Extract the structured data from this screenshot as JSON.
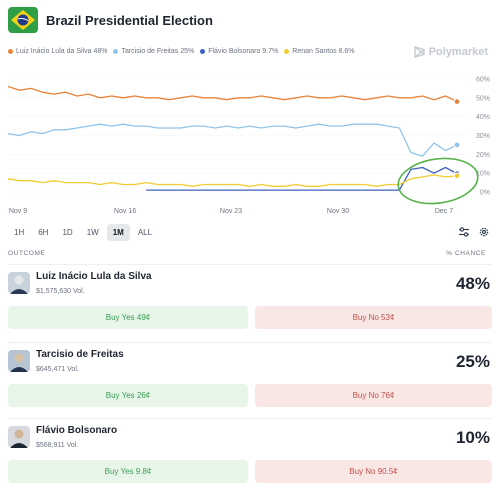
{
  "header": {
    "title": "Brazil Presidential Election"
  },
  "legend": [
    {
      "label": "Luiz Inácio Lula da Silva 48%",
      "color": "#e8843a"
    },
    {
      "label": "Tarcisio de Freitas 25%",
      "color": "#8fc4ea"
    },
    {
      "label": "Flávio Bolsonaro 9.7%",
      "color": "#3d5fc0"
    },
    {
      "label": "Renan Santos 8.6%",
      "color": "#f0cc33"
    }
  ],
  "brand": {
    "name": "Polymarket"
  },
  "chart_data": {
    "type": "line",
    "x_ticks": [
      "Nov 9",
      "Nov 16",
      "Nov 23",
      "Nov 30",
      "Dec 7"
    ],
    "y_ticks": [
      "60%",
      "50%",
      "40%",
      "30%",
      "20%",
      "10%",
      "0%"
    ],
    "ylim": [
      0,
      60
    ],
    "series": [
      {
        "name": "Luiz Inácio Lula da Silva",
        "color": "#e8843a",
        "values": [
          56,
          54,
          55,
          53,
          52,
          53,
          51,
          52,
          50,
          51,
          50,
          51,
          50,
          50,
          49,
          50,
          51,
          50,
          50,
          49,
          50,
          50,
          51,
          50,
          49,
          50,
          51,
          50,
          50,
          51,
          50,
          49,
          50,
          51,
          50,
          50,
          51,
          49,
          51,
          48
        ]
      },
      {
        "name": "Tarcisio de Freitas",
        "color": "#8fc4ea",
        "values": [
          31,
          30,
          32,
          31,
          33,
          33,
          34,
          35,
          36,
          35,
          36,
          35,
          35,
          34,
          34,
          34,
          35,
          35,
          34,
          35,
          34,
          35,
          34,
          35,
          35,
          34,
          35,
          36,
          35,
          35,
          36,
          36,
          36,
          35,
          34,
          21,
          19,
          26,
          22,
          25
        ]
      },
      {
        "name": "Flávio Bolsonaro",
        "color": "#3d5fc0",
        "values": [
          null,
          null,
          null,
          null,
          null,
          null,
          null,
          null,
          null,
          null,
          null,
          null,
          1,
          1,
          1,
          1,
          1,
          1,
          1,
          1,
          1,
          1,
          1,
          1,
          1,
          1,
          1,
          1,
          1,
          1,
          1,
          1,
          1,
          1,
          1,
          12,
          13,
          10,
          13,
          9.7
        ]
      },
      {
        "name": "Renan Santos",
        "color": "#f0cc33",
        "values": [
          7,
          6,
          6,
          5,
          6,
          5,
          5,
          5,
          4,
          5,
          4,
          4,
          5,
          4,
          4,
          4,
          3,
          4,
          4,
          4,
          4,
          3,
          4,
          3,
          3,
          4,
          3,
          3,
          4,
          4,
          4,
          4,
          3,
          4,
          4,
          7,
          8,
          9,
          8,
          8.6
        ]
      }
    ]
  },
  "timeframes": [
    {
      "label": "1H",
      "active": false
    },
    {
      "label": "6H",
      "active": false
    },
    {
      "label": "1D",
      "active": false
    },
    {
      "label": "1W",
      "active": false
    },
    {
      "label": "1M",
      "active": true
    },
    {
      "label": "ALL",
      "active": false
    }
  ],
  "table": {
    "outcome_label": "OUTCOME",
    "chance_label": "% CHANCE"
  },
  "candidates": [
    {
      "name": "Luiz Inácio Lula da Silva",
      "volume": "$1,575,630 Vol.",
      "chance": "48%",
      "yes_label": "Buy Yes 49¢",
      "no_label": "Buy No 53¢"
    },
    {
      "name": "Tarcisio de Freitas",
      "volume": "$645,471 Vol.",
      "chance": "25%",
      "yes_label": "Buy Yes 26¢",
      "no_label": "Buy No 76¢"
    },
    {
      "name": "Flávio Bolsonaro",
      "volume": "$568,911 Vol.",
      "chance": "10%",
      "yes_label": "Buy Yes 9.8¢",
      "no_label": "Buy No 90.5¢"
    }
  ]
}
